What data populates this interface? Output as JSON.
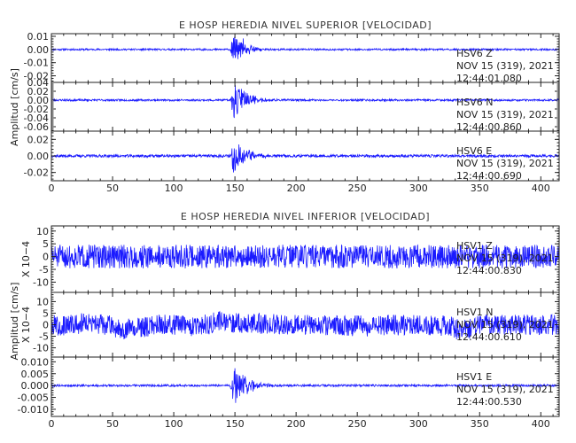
{
  "chart_data": [
    {
      "type": "line",
      "title": "E HOSP HEREDIA NIVEL SUPERIOR [VELOCIDAD]",
      "ylabel": "Amplitud [cm/s]",
      "x_ticks": [
        "0",
        "50",
        "100",
        "150",
        "200",
        "250",
        "300",
        "350",
        "400"
      ],
      "xlim": [
        0,
        415
      ],
      "event_time": 147,
      "panels": [
        {
          "channel": "HSV6   Z",
          "date": "NOV 15 (319), 2021",
          "time": "12:44:01.080",
          "ylim": [
            -0.025,
            0.012
          ],
          "y_ticks": [
            "0.01",
            "0.00",
            "-0.01",
            "-0.02"
          ],
          "y_tick_values": [
            0.01,
            0.0,
            -0.01,
            -0.02
          ],
          "noise": 0.0006,
          "burst": 0.012,
          "seed": 11,
          "low_freq": false
        },
        {
          "channel": "HSV6   N",
          "date": "NOV 15 (319), 2021",
          "time": "12:44:00.860",
          "ylim": [
            -0.07,
            0.04
          ],
          "y_ticks": [
            "0.04",
            "0.02",
            "0.00",
            "-0.02",
            "-0.04",
            "-0.06"
          ],
          "y_tick_values": [
            0.04,
            0.02,
            0.0,
            -0.02,
            -0.04,
            -0.06
          ],
          "noise": 0.002,
          "burst": 0.045,
          "seed": 23,
          "low_freq": false
        },
        {
          "channel": "HSV6   E",
          "date": "NOV 15 (319), 2021",
          "time": "12:44:00.690",
          "ylim": [
            -0.03,
            0.03
          ],
          "y_ticks": [
            "0.02",
            "0.00",
            "-0.02"
          ],
          "y_tick_values": [
            0.02,
            0.0,
            -0.02
          ],
          "noise": 0.0015,
          "burst": 0.022,
          "seed": 37,
          "low_freq": false
        }
      ]
    },
    {
      "type": "line",
      "title": "E HOSP HEREDIA NIVEL INFERIOR [VELOCIDAD]",
      "ylabel": "Amplitud [cm/s]",
      "x_ticks": [
        "0",
        "50",
        "100",
        "150",
        "200",
        "250",
        "300",
        "350",
        "400"
      ],
      "xlim": [
        0,
        415
      ],
      "event_time": 147,
      "panels": [
        {
          "channel": "HSV1   Z",
          "date": "NOV 15 (319), 2021",
          "time": "12:44:00.830",
          "y_mult": "X 10−4",
          "ylim": [
            -14,
            12
          ],
          "y_ticks": [
            "10",
            "5",
            "0",
            "-5",
            "-10"
          ],
          "y_tick_values": [
            10,
            5,
            0,
            -5,
            -10
          ],
          "noise": 4.2,
          "burst": 0,
          "seed": 51,
          "low_freq": false
        },
        {
          "channel": "HSV1   N",
          "date": "NOV 15 (319), 2021",
          "time": "12:44:00.610",
          "y_mult": "X 10−4",
          "ylim": [
            -14,
            14
          ],
          "y_ticks": [
            "10",
            "5",
            "0",
            "-5",
            "-10"
          ],
          "y_tick_values": [
            10,
            5,
            0,
            -5,
            -10
          ],
          "noise": 4.0,
          "burst": 0,
          "seed": 67,
          "low_freq": true
        },
        {
          "channel": "HSV1   E",
          "date": "NOV 15 (319), 2021",
          "time": "12:44:00.530",
          "ylim": [
            -0.013,
            0.012
          ],
          "y_ticks": [
            "0.010",
            "0.005",
            "0.000",
            "-0.005",
            "-0.010"
          ],
          "y_tick_values": [
            0.01,
            0.005,
            0.0,
            -0.005,
            -0.01
          ],
          "noise": 0.0004,
          "burst": 0.01,
          "seed": 79,
          "low_freq": false
        }
      ]
    }
  ]
}
